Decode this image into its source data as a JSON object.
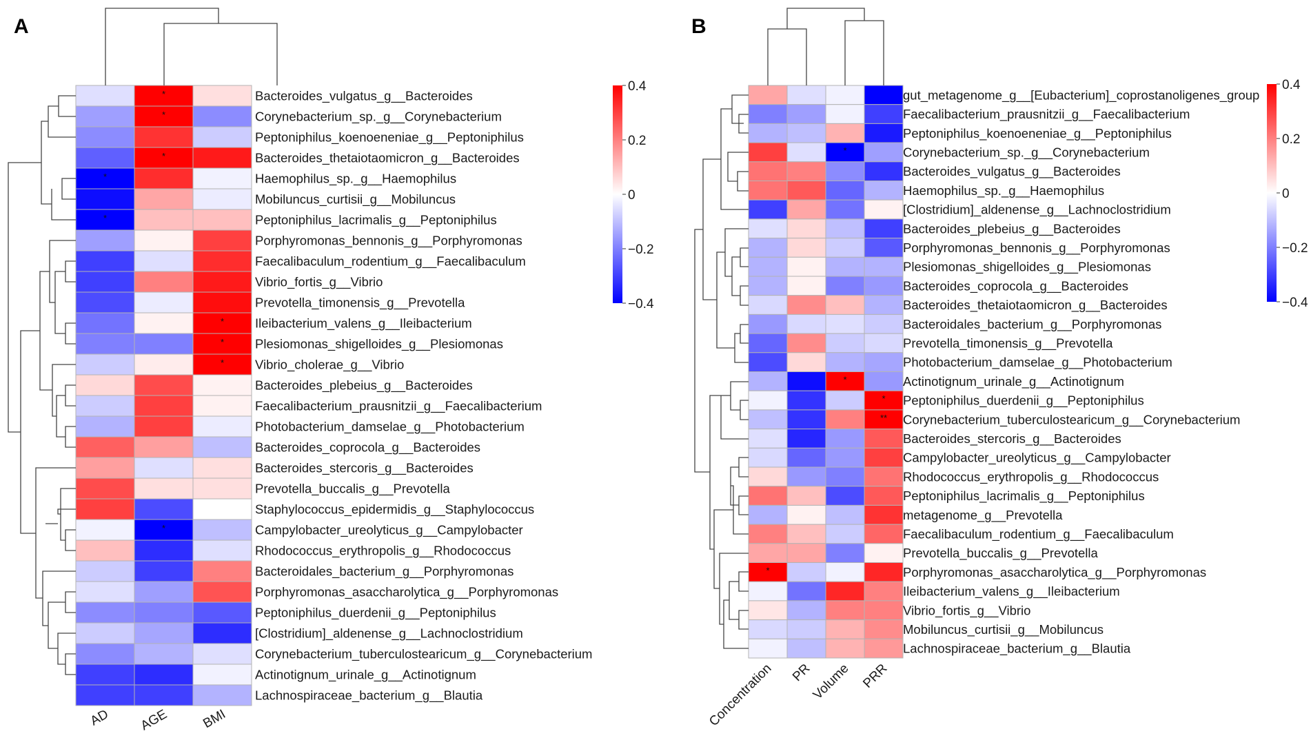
{
  "colors": {
    "low": "#0000ff",
    "mid": "#ffffff",
    "high": "#ff0000",
    "grid": "#b3b3b3",
    "line": "#444444"
  },
  "chart_data": [
    {
      "type": "heatmap",
      "panel": "A",
      "columns": [
        "AD",
        "AGE",
        "BMI"
      ],
      "legend_ticks": [
        "0.4",
        "0.2",
        "0",
        "−0.2",
        "−0.4"
      ],
      "legend_range": [
        -0.4,
        0.4
      ],
      "rows": [
        {
          "label": "Bacteroides_vulgatus_g__Bacteroides",
          "values": [
            -0.05,
            0.45,
            0.05
          ],
          "sig": [
            "",
            "*",
            ""
          ]
        },
        {
          "label": "Corynebacterium_sp._g__Corynebacterium",
          "values": [
            -0.15,
            0.42,
            -0.18
          ],
          "sig": [
            "",
            "*",
            ""
          ]
        },
        {
          "label": "Peptoniphilus_koenoeneniae_g__Peptoniphilus",
          "values": [
            -0.18,
            0.32,
            -0.08
          ],
          "sig": [
            "",
            "",
            ""
          ]
        },
        {
          "label": "Bacteroides_thetaiotaomicron_g__Bacteroides",
          "values": [
            -0.25,
            0.44,
            0.36
          ],
          "sig": [
            "",
            "*",
            ""
          ]
        },
        {
          "label": "Haemophilus_sp._g__Haemophilus",
          "values": [
            -0.42,
            0.33,
            -0.02
          ],
          "sig": [
            "*",
            "",
            ""
          ]
        },
        {
          "label": "Mobiluncus_curtisii_g__Mobiluncus",
          "values": [
            -0.38,
            0.14,
            -0.03
          ],
          "sig": [
            "",
            "",
            ""
          ]
        },
        {
          "label": "Peptoniphilus_lacrimalis_g__Peptoniphilus",
          "values": [
            -0.41,
            0.1,
            0.1
          ],
          "sig": [
            "*",
            "",
            ""
          ]
        },
        {
          "label": "Porphyromonas_bennonis_g__Porphyromonas",
          "values": [
            -0.15,
            0.02,
            0.3
          ],
          "sig": [
            "",
            "",
            ""
          ]
        },
        {
          "label": "Faecalibaculum_rodentium_g__Faecalibaculum",
          "values": [
            -0.3,
            -0.05,
            0.33
          ],
          "sig": [
            "",
            "",
            ""
          ]
        },
        {
          "label": "Vibrio_fortis_g__Vibrio",
          "values": [
            -0.3,
            0.2,
            0.36
          ],
          "sig": [
            "",
            "",
            ""
          ]
        },
        {
          "label": "Prevotella_timonensis_g__Prevotella",
          "values": [
            -0.28,
            -0.03,
            0.38
          ],
          "sig": [
            "",
            "",
            ""
          ]
        },
        {
          "label": "Ileibacterium_valens_g__Ileibacterium",
          "values": [
            -0.22,
            0.02,
            0.42
          ],
          "sig": [
            "",
            "",
            "*"
          ]
        },
        {
          "label": "Plesiomonas_shigelloides_g__Plesiomonas",
          "values": [
            -0.2,
            -0.2,
            0.43
          ],
          "sig": [
            "",
            "",
            "*"
          ]
        },
        {
          "label": "Vibrio_cholerae_g__Vibrio",
          "values": [
            -0.08,
            0.03,
            0.44
          ],
          "sig": [
            "",
            "",
            "*"
          ]
        },
        {
          "label": "Bacteroides_plebeius_g__Bacteroides",
          "values": [
            0.06,
            0.28,
            0.02
          ],
          "sig": [
            "",
            "",
            ""
          ]
        },
        {
          "label": "Faecalibacterium_prausnitzii_g__Faecalibacterium",
          "values": [
            -0.08,
            0.3,
            0.02
          ],
          "sig": [
            "",
            "",
            ""
          ]
        },
        {
          "label": "Photobacterium_damselae_g__Photobacterium",
          "values": [
            -0.12,
            0.3,
            -0.03
          ],
          "sig": [
            "",
            "",
            ""
          ]
        },
        {
          "label": "Bacteroides_coprocola_g__Bacteroides",
          "values": [
            0.25,
            0.15,
            -0.1
          ],
          "sig": [
            "",
            "",
            ""
          ]
        },
        {
          "label": "Bacteroides_stercoris_g__Bacteroides",
          "values": [
            0.15,
            -0.05,
            0.05
          ],
          "sig": [
            "",
            "",
            ""
          ]
        },
        {
          "label": "Prevotella_buccalis_g__Prevotella",
          "values": [
            0.28,
            0.05,
            0.05
          ],
          "sig": [
            "",
            "",
            ""
          ]
        },
        {
          "label": "Staphylococcus_epidermidis_g__Staphylococcus",
          "values": [
            0.3,
            -0.28,
            0.0
          ],
          "sig": [
            "",
            "",
            ""
          ]
        },
        {
          "label": "Campylobacter_ureolyticus_g__Campylobacter",
          "values": [
            -0.02,
            -0.44,
            -0.1
          ],
          "sig": [
            "",
            "*",
            ""
          ]
        },
        {
          "label": "Rhodococcus_erythropolis_g__Rhodococcus",
          "values": [
            0.1,
            -0.33,
            -0.05
          ],
          "sig": [
            "",
            "",
            ""
          ]
        },
        {
          "label": "Bacteroidales_bacterium_g__Porphyromonas",
          "values": [
            -0.08,
            -0.3,
            0.2
          ],
          "sig": [
            "",
            "",
            ""
          ]
        },
        {
          "label": "Porphyromonas_asaccharolytica_g__Porphyromonas",
          "values": [
            -0.05,
            -0.15,
            0.27
          ],
          "sig": [
            "",
            "",
            ""
          ]
        },
        {
          "label": "Peptoniphilus_duerdenii_g__Peptoniphilus",
          "values": [
            -0.18,
            -0.2,
            -0.26
          ],
          "sig": [
            "",
            "",
            ""
          ]
        },
        {
          "label": "[Clostridium]_aldenense_g__Lachnoclostridium",
          "values": [
            -0.08,
            -0.14,
            -0.33
          ],
          "sig": [
            "",
            "",
            ""
          ]
        },
        {
          "label": "Corynebacterium_tuberculostearicum_g__Corynebacterium",
          "values": [
            -0.18,
            -0.12,
            -0.05
          ],
          "sig": [
            "",
            "",
            ""
          ]
        },
        {
          "label": "Actinotignum_urinale_g__Actinotignum",
          "values": [
            -0.3,
            -0.33,
            -0.02
          ],
          "sig": [
            "",
            "",
            ""
          ]
        },
        {
          "label": "Lachnospiraceae_bacterium_g__Blautia",
          "values": [
            -0.3,
            -0.3,
            -0.12
          ],
          "sig": [
            "",
            "",
            ""
          ]
        }
      ]
    },
    {
      "type": "heatmap",
      "panel": "B",
      "columns": [
        "Concentration",
        "PR",
        "Volume",
        "PRR"
      ],
      "legend_ticks": [
        "0.4",
        "0.2",
        "0",
        "−0.2",
        "−0.4"
      ],
      "legend_range": [
        -0.4,
        0.4
      ],
      "rows": [
        {
          "label": "gut_metagenome_g__[Eubacterium]_coprostanoligenes_group",
          "values": [
            0.14,
            -0.05,
            -0.02,
            -0.42
          ],
          "sig": [
            "",
            "",
            "",
            ""
          ]
        },
        {
          "label": "Faecalibacterium_prausnitzii_g__Faecalibacterium",
          "values": [
            -0.2,
            -0.15,
            -0.02,
            -0.3
          ],
          "sig": [
            "",
            "",
            "",
            ""
          ]
        },
        {
          "label": "Peptoniphilus_koenoeneniae_g__Peptoniphilus",
          "values": [
            -0.12,
            -0.1,
            0.12,
            -0.36
          ],
          "sig": [
            "",
            "",
            "",
            ""
          ]
        },
        {
          "label": "Corynebacterium_sp._g__Corynebacterium",
          "values": [
            0.3,
            -0.05,
            -0.44,
            -0.15
          ],
          "sig": [
            "",
            "",
            "*",
            ""
          ]
        },
        {
          "label": "Bacteroides_vulgatus_g__Bacteroides",
          "values": [
            0.22,
            0.2,
            -0.18,
            -0.32
          ],
          "sig": [
            "",
            "",
            "",
            ""
          ]
        },
        {
          "label": "Haemophilus_sp._g__Haemophilus",
          "values": [
            0.22,
            0.26,
            -0.24,
            -0.12
          ],
          "sig": [
            "",
            "",
            "",
            ""
          ]
        },
        {
          "label": "[Clostridium]_aldenense_g__Lachnoclostridium",
          "values": [
            -0.3,
            0.14,
            -0.22,
            0.02
          ],
          "sig": [
            "",
            "",
            "",
            ""
          ]
        },
        {
          "label": "Bacteroides_plebeius_g__Bacteroides",
          "values": [
            -0.05,
            0.06,
            -0.1,
            -0.3
          ],
          "sig": [
            "",
            "",
            "",
            ""
          ]
        },
        {
          "label": "Porphyromonas_bennonis_g__Porphyromonas",
          "values": [
            -0.12,
            0.06,
            -0.08,
            -0.26
          ],
          "sig": [
            "",
            "",
            "",
            ""
          ]
        },
        {
          "label": "Plesiomonas_shigelloides_g__Plesiomonas",
          "values": [
            -0.12,
            0.02,
            -0.12,
            -0.12
          ],
          "sig": [
            "",
            "",
            "",
            ""
          ]
        },
        {
          "label": "Bacteroides_coprocola_g__Bacteroides",
          "values": [
            -0.12,
            0.02,
            -0.2,
            -0.16
          ],
          "sig": [
            "",
            "",
            "",
            ""
          ]
        },
        {
          "label": "Bacteroides_thetaiotaomicron_g__Bacteroides",
          "values": [
            -0.06,
            0.18,
            0.1,
            -0.12
          ],
          "sig": [
            "",
            "",
            "",
            ""
          ]
        },
        {
          "label": "Bacteroidales_bacterium_g__Porphyromonas",
          "values": [
            -0.16,
            -0.06,
            -0.05,
            -0.08
          ],
          "sig": [
            "",
            "",
            "",
            ""
          ]
        },
        {
          "label": "Prevotella_timonensis_g__Prevotella",
          "values": [
            -0.24,
            0.18,
            -0.08,
            -0.06
          ],
          "sig": [
            "",
            "",
            "",
            ""
          ]
        },
        {
          "label": "Photobacterium_damselae_g__Photobacterium",
          "values": [
            -0.28,
            0.06,
            -0.12,
            -0.14
          ],
          "sig": [
            "",
            "",
            "",
            ""
          ]
        },
        {
          "label": "Actinotignum_urinale_g__Actinotignum",
          "values": [
            -0.12,
            -0.38,
            0.44,
            -0.16
          ],
          "sig": [
            "",
            "",
            "*",
            ""
          ]
        },
        {
          "label": "Peptoniphilus_duerdenii_g__Peptoniphilus",
          "values": [
            -0.02,
            -0.32,
            -0.08,
            0.44
          ],
          "sig": [
            "",
            "",
            "",
            "*"
          ]
        },
        {
          "label": "Corynebacterium_tuberculostearicum_g__Corynebacterium",
          "values": [
            -0.1,
            -0.32,
            0.2,
            0.46
          ],
          "sig": [
            "",
            "",
            "",
            "**"
          ]
        },
        {
          "label": "Bacteroides_stercoris_g__Bacteroides",
          "values": [
            -0.05,
            -0.34,
            -0.16,
            0.26
          ],
          "sig": [
            "",
            "",
            "",
            ""
          ]
        },
        {
          "label": "Campylobacter_ureolyticus_g__Campylobacter",
          "values": [
            -0.06,
            -0.24,
            -0.16,
            0.3
          ],
          "sig": [
            "",
            "",
            "",
            ""
          ]
        },
        {
          "label": "Rhodococcus_erythropolis_g__Rhodococcus",
          "values": [
            0.06,
            -0.16,
            -0.2,
            0.22
          ],
          "sig": [
            "",
            "",
            "",
            ""
          ]
        },
        {
          "label": "Peptoniphilus_lacrimalis_g__Peptoniphilus",
          "values": [
            0.22,
            0.1,
            -0.28,
            0.26
          ],
          "sig": [
            "",
            "",
            "",
            ""
          ]
        },
        {
          "label": "metagenome_g__Prevotella",
          "values": [
            -0.12,
            0.02,
            -0.1,
            0.32
          ],
          "sig": [
            "",
            "",
            "",
            ""
          ]
        },
        {
          "label": "Faecalibaculum_rodentium_g__Faecalibaculum",
          "values": [
            0.2,
            0.1,
            -0.08,
            0.24
          ],
          "sig": [
            "",
            "",
            "",
            ""
          ]
        },
        {
          "label": "Prevotella_buccalis_g__Prevotella",
          "values": [
            0.14,
            0.14,
            -0.2,
            0.02
          ],
          "sig": [
            "",
            "",
            "",
            ""
          ]
        },
        {
          "label": "Porphyromonas_asaccharolytica_g__Porphyromonas",
          "values": [
            0.42,
            -0.08,
            -0.02,
            0.34
          ],
          "sig": [
            "*",
            "",
            "",
            ""
          ]
        },
        {
          "label": "Ileibacterium_valens_g__Ileibacterium",
          "values": [
            -0.02,
            -0.22,
            0.34,
            0.2
          ],
          "sig": [
            "",
            "",
            "",
            ""
          ]
        },
        {
          "label": "Vibrio_fortis_g__Vibrio",
          "values": [
            0.04,
            -0.12,
            0.2,
            0.2
          ],
          "sig": [
            "",
            "",
            "",
            ""
          ]
        },
        {
          "label": "Mobiluncus_curtisii_g__Mobiluncus",
          "values": [
            -0.06,
            -0.08,
            0.12,
            0.18
          ],
          "sig": [
            "",
            "",
            "",
            ""
          ]
        },
        {
          "label": "Lachnospiraceae_bacterium_g__Blautia",
          "values": [
            -0.02,
            -0.1,
            0.12,
            0.16
          ],
          "sig": [
            "",
            "",
            "",
            ""
          ]
        }
      ]
    }
  ]
}
